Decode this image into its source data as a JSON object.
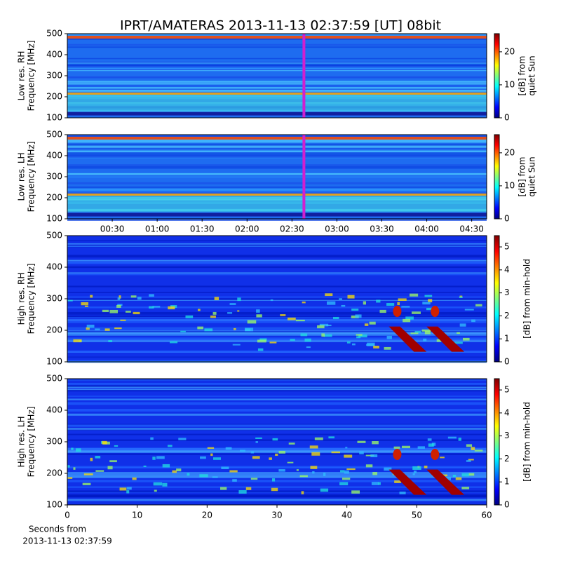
{
  "figure": {
    "title": "IPRT/AMATERAS 2013-11-13 02:37:59 [UT]   08bit",
    "xlabel": [
      "Seconds from",
      "2013-11-13 02:37:59"
    ]
  },
  "chart_data": [
    {
      "type": "heatmap",
      "ylabel": [
        "Low res. RH",
        "Frequency [MHz]"
      ],
      "xlim": [
        0,
        280
      ],
      "ylim": [
        100,
        500
      ],
      "yticks": [
        100,
        200,
        300,
        400,
        500
      ],
      "marker_x": 157.98,
      "marker_color": "#d020d0",
      "colorbar": {
        "lim": [
          0,
          25.5
        ],
        "ticks": [
          0,
          10,
          20
        ],
        "label": [
          "[dB] from",
          "quiet Sun"
        ]
      }
    },
    {
      "type": "heatmap",
      "ylabel": [
        "Low res. LH",
        "Frequency [MHz]"
      ],
      "xlim": [
        0,
        280
      ],
      "ylim": [
        100,
        500
      ],
      "yticks": [
        100,
        200,
        300,
        400,
        500
      ],
      "xticks": [
        {
          "value": 30,
          "label": "00:30"
        },
        {
          "value": 60,
          "label": "01:00"
        },
        {
          "value": 90,
          "label": "01:30"
        },
        {
          "value": 120,
          "label": "02:00"
        },
        {
          "value": 150,
          "label": "02:30"
        },
        {
          "value": 180,
          "label": "03:00"
        },
        {
          "value": 210,
          "label": "03:30"
        },
        {
          "value": 240,
          "label": "04:00"
        },
        {
          "value": 270,
          "label": "04:30"
        }
      ],
      "marker_x": 157.98,
      "marker_color": "#d020d0",
      "colorbar": {
        "lim": [
          0,
          25.5
        ],
        "ticks": [
          0,
          10,
          20
        ],
        "label": [
          "[dB] from",
          "quiet Sun"
        ]
      }
    },
    {
      "type": "heatmap",
      "ylabel": [
        "High res. RH",
        "Frequency [MHz]"
      ],
      "xlim": [
        0,
        60
      ],
      "ylim": [
        100,
        500
      ],
      "yticks": [
        100,
        200,
        300,
        400,
        500
      ],
      "colorbar": {
        "lim": [
          0,
          5.49
        ],
        "ticks": [
          0,
          1,
          2,
          3,
          4,
          5
        ],
        "label": [
          "[dB] from min-hold"
        ]
      }
    },
    {
      "type": "heatmap",
      "ylabel": [
        "High res. LH",
        "Frequency [MHz]"
      ],
      "xlim": [
        0,
        60
      ],
      "ylim": [
        100,
        500
      ],
      "yticks": [
        100,
        200,
        300,
        400,
        500
      ],
      "xticks": [
        0,
        10,
        20,
        30,
        40,
        50,
        60
      ],
      "colorbar": {
        "lim": [
          0,
          5.49
        ],
        "ticks": [
          0,
          1,
          2,
          3,
          4,
          5
        ],
        "label": [
          "[dB] from min-hold"
        ]
      }
    }
  ]
}
